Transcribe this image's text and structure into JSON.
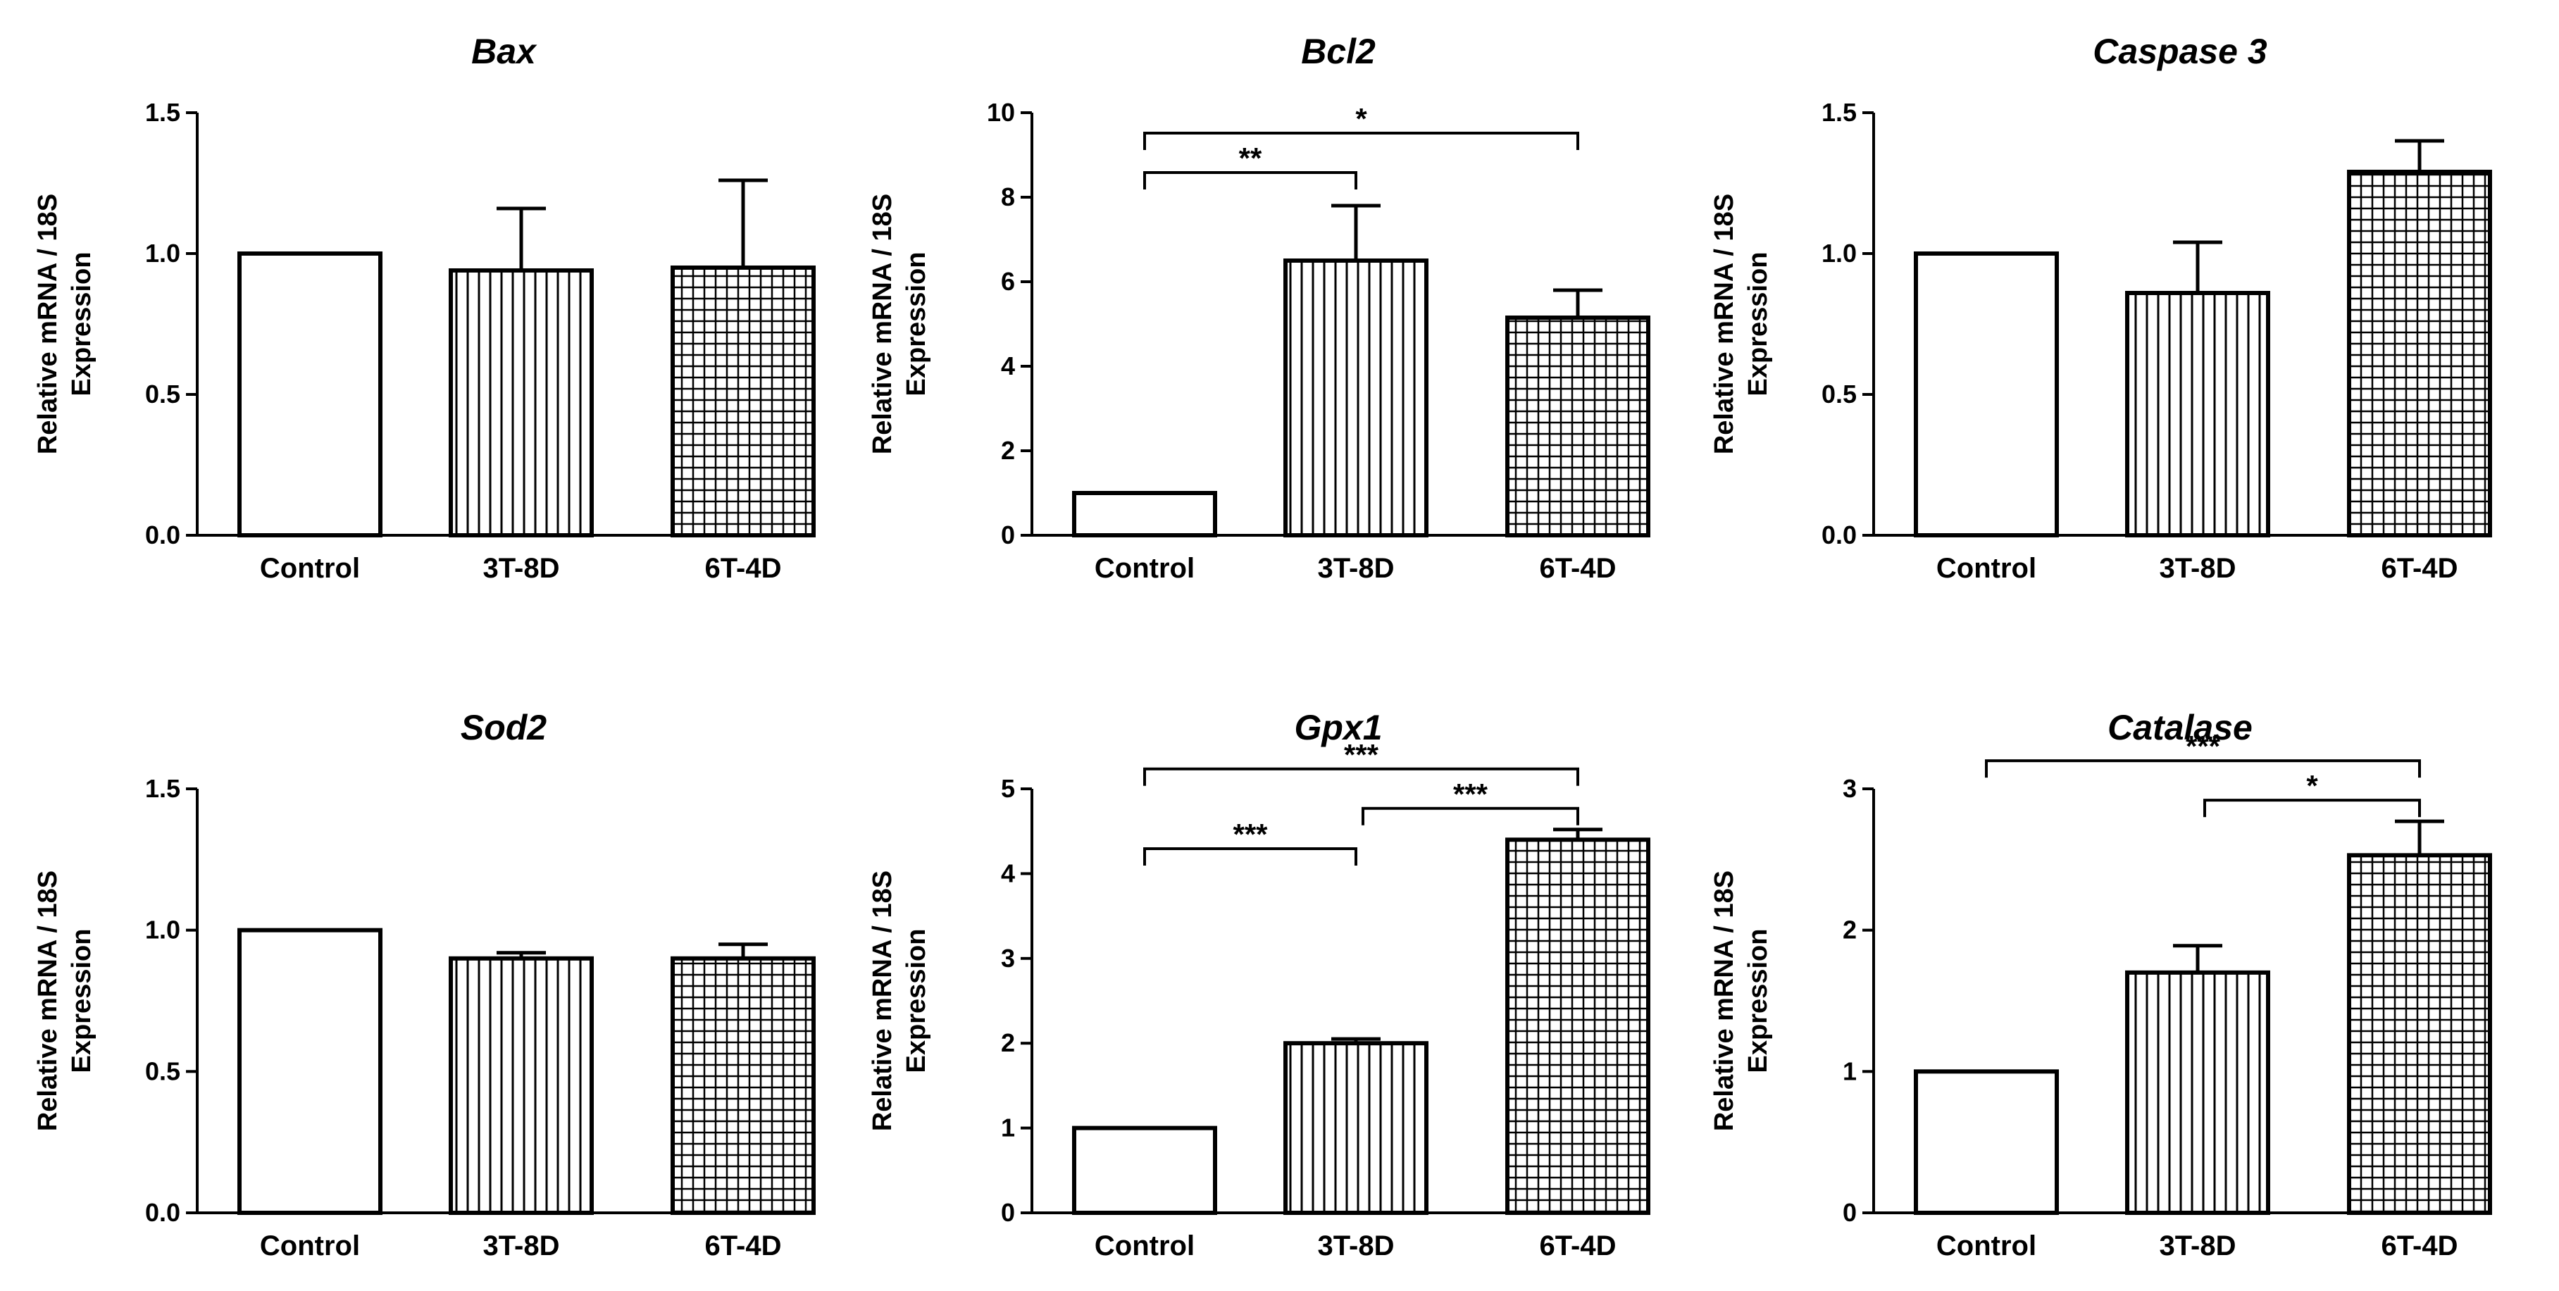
{
  "chart_data": [
    {
      "type": "bar",
      "title": "Bax",
      "ylabel_line1": "Relative mRNA / 18S",
      "ylabel_line2": "Expression",
      "categories": [
        "Control",
        "3T-8D",
        "6T-4D"
      ],
      "values": [
        1.0,
        0.94,
        0.95
      ],
      "errors": [
        0.0,
        0.22,
        0.31
      ],
      "ylim": [
        0,
        1.5
      ],
      "ticks": [
        "0.0",
        "0.5",
        "1.0",
        "1.5"
      ],
      "significance": []
    },
    {
      "type": "bar",
      "title": "Bcl2",
      "ylabel_line1": "Relative mRNA / 18S",
      "ylabel_line2": "Expression",
      "categories": [
        "Control",
        "3T-8D",
        "6T-4D"
      ],
      "values": [
        1.0,
        6.5,
        5.15
      ],
      "errors": [
        0.0,
        1.3,
        0.65
      ],
      "ylim": [
        0,
        10
      ],
      "ticks": [
        "0",
        "2",
        "4",
        "6",
        "8",
        "10"
      ],
      "significance": [
        {
          "from": 0,
          "to": 1,
          "label": "**"
        },
        {
          "from": 0,
          "to": 2,
          "label": "*"
        }
      ]
    },
    {
      "type": "bar",
      "title": "Caspase 3",
      "ylabel_line1": "Relative mRNA / 18S",
      "ylabel_line2": "Expression",
      "categories": [
        "Control",
        "3T-8D",
        "6T-4D"
      ],
      "values": [
        1.0,
        0.86,
        1.29
      ],
      "errors": [
        0.0,
        0.18,
        0.11
      ],
      "ylim": [
        0,
        1.5
      ],
      "ticks": [
        "0.0",
        "0.5",
        "1.0",
        "1.5"
      ],
      "significance": []
    },
    {
      "type": "bar",
      "title": "Sod2",
      "ylabel_line1": "Relative mRNA / 18S",
      "ylabel_line2": "Expression",
      "categories": [
        "Control",
        "3T-8D",
        "6T-4D"
      ],
      "values": [
        1.0,
        0.9,
        0.9
      ],
      "errors": [
        0.0,
        0.02,
        0.05
      ],
      "ylim": [
        0,
        1.5
      ],
      "ticks": [
        "0.0",
        "0.5",
        "1.0",
        "1.5"
      ],
      "significance": []
    },
    {
      "type": "bar",
      "title": "Gpx1",
      "ylabel_line1": "Relative mRNA / 18S",
      "ylabel_line2": "Expression",
      "categories": [
        "Control",
        "3T-8D",
        "6T-4D"
      ],
      "values": [
        1.0,
        2.0,
        4.4
      ],
      "errors": [
        0.0,
        0.05,
        0.12
      ],
      "ylim": [
        0,
        5
      ],
      "ticks": [
        "0",
        "1",
        "2",
        "3",
        "4",
        "5"
      ],
      "significance": [
        {
          "from": 0,
          "to": 1,
          "label": "***"
        },
        {
          "from": 1,
          "to": 2,
          "label": "***"
        },
        {
          "from": 0,
          "to": 2,
          "label": "***"
        }
      ]
    },
    {
      "type": "bar",
      "title": "Catalase",
      "ylabel_line1": "Relative mRNA / 18S",
      "ylabel_line2": "Expression",
      "categories": [
        "Control",
        "3T-8D",
        "6T-4D"
      ],
      "values": [
        1.0,
        1.7,
        2.53
      ],
      "errors": [
        0.0,
        0.19,
        0.24
      ],
      "ylim": [
        0,
        3
      ],
      "ticks": [
        "0",
        "1",
        "2",
        "3"
      ],
      "significance": [
        {
          "from": 1,
          "to": 2,
          "label": "*"
        },
        {
          "from": 0,
          "to": 2,
          "label": "***"
        }
      ]
    }
  ]
}
